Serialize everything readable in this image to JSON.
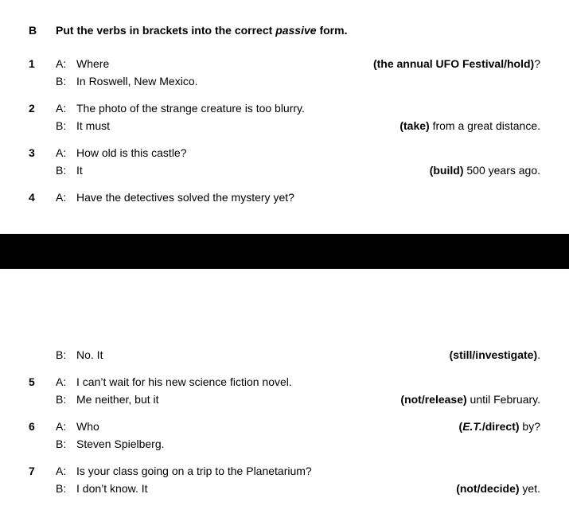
{
  "section": {
    "label": "B",
    "instruction_pre": "Put the verbs in brackets into the correct ",
    "instruction_em": "passive",
    "instruction_post": " form."
  },
  "items": [
    {
      "num": "1",
      "a_left": "Where",
      "a_bracket": "(the annual UFO Festival/hold)",
      "a_tail": "?",
      "b_left": "In Roswell, New Mexico.",
      "b_bracket": "",
      "b_tail": ""
    },
    {
      "num": "2",
      "a_left": "The photo of the strange creature is too blurry.",
      "a_bracket": "",
      "a_tail": "",
      "b_left": "It must",
      "b_bracket": "(take)",
      "b_tail": " from a great distance."
    },
    {
      "num": "3",
      "a_left": "How old is this castle?",
      "a_bracket": "",
      "a_tail": "",
      "b_left": "It",
      "b_bracket": "(build)",
      "b_tail": " 500 years ago."
    },
    {
      "num": "4",
      "a_left": "Have the detectives solved the mystery yet?",
      "a_bracket": "",
      "a_tail": "",
      "b_left": "",
      "b_bracket": "",
      "b_tail": ""
    }
  ],
  "items2": [
    {
      "num": "",
      "a_left": "",
      "a_bracket": "",
      "a_tail": "",
      "b_left": "No. It",
      "b_bracket": "(still/investigate)",
      "b_tail": "."
    },
    {
      "num": "5",
      "a_left": "I can’t wait for his new science fiction novel.",
      "a_bracket": "",
      "a_tail": "",
      "b_left": "Me neither, but it",
      "b_bracket": "(not/release)",
      "b_tail": " until February."
    },
    {
      "num": "6",
      "a_left": "Who",
      "a_bracket_pre": "(",
      "a_bracket_em": "E.T.",
      "a_bracket_post": "/direct)",
      "a_tail": " by?",
      "b_left": "Steven Spielberg.",
      "b_bracket": "",
      "b_tail": ""
    },
    {
      "num": "7",
      "a_left": "Is your class going on a trip to the Planetarium?",
      "a_bracket": "",
      "a_tail": "",
      "b_left": "I don’t know. It",
      "b_bracket": "(not/decide)",
      "b_tail": " yet."
    }
  ]
}
